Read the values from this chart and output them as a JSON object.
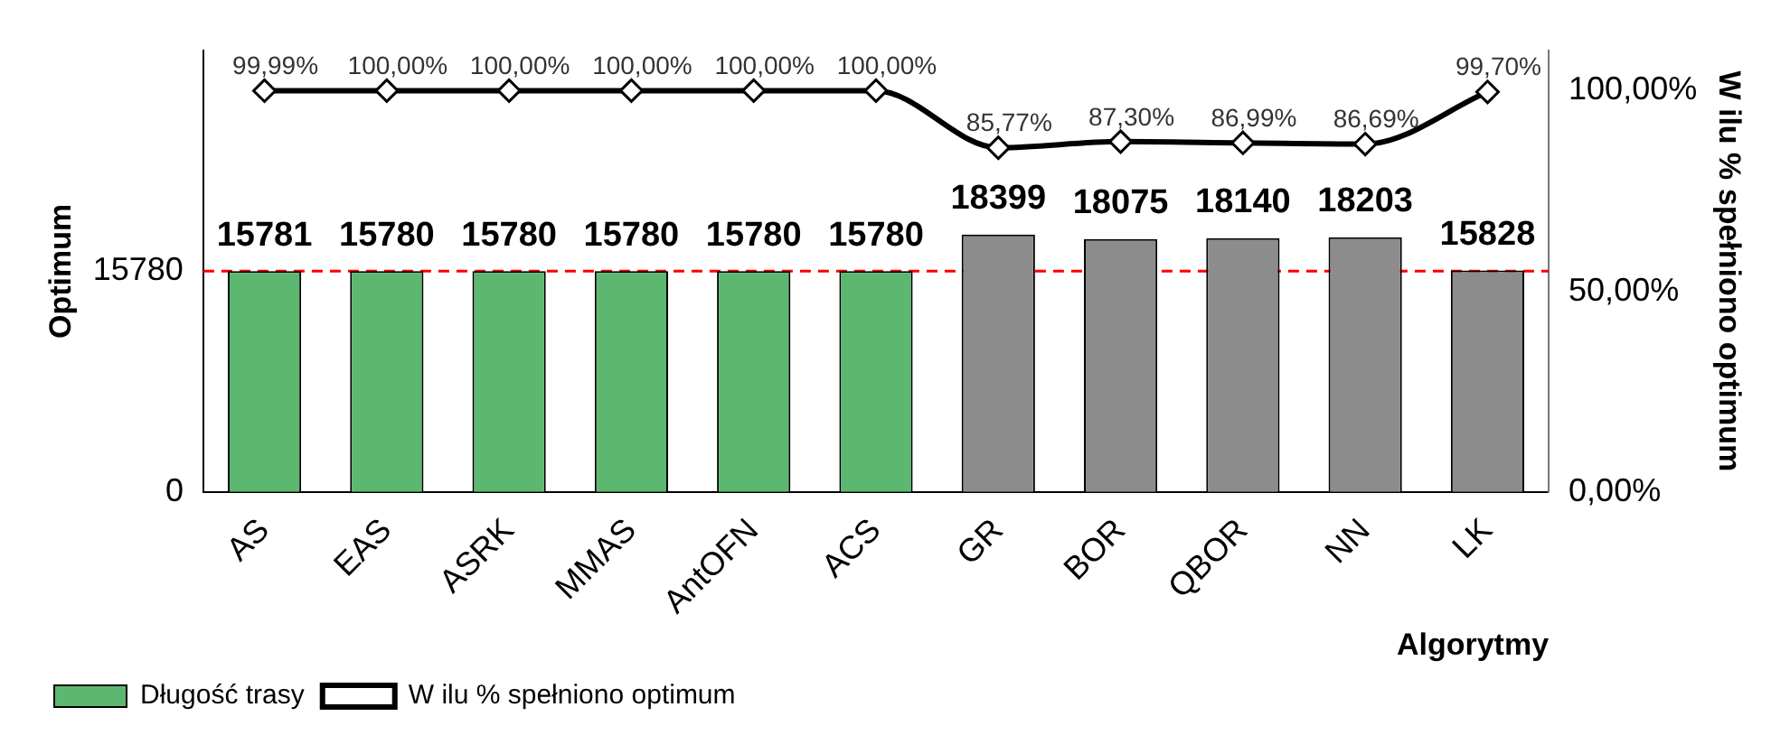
{
  "chart_data": {
    "type": "bar",
    "categories": [
      "AS",
      "EAS",
      "ASRK",
      "MMAS",
      "AntOFN",
      "ACS",
      "GR",
      "BOR",
      "QBOR",
      "NN",
      "LK"
    ],
    "series": [
      {
        "name": "Długość trasy",
        "colors": [
          "#5cb870",
          "#5cb870",
          "#5cb870",
          "#5cb870",
          "#5cb870",
          "#5cb870",
          "#8c8c8c",
          "#8c8c8c",
          "#8c8c8c",
          "#8c8c8c",
          "#8c8c8c"
        ],
        "values": [
          15781,
          15780,
          15780,
          15780,
          15780,
          15780,
          18399,
          18075,
          18140,
          18203,
          15828
        ],
        "value_labels": [
          "15781",
          "15780",
          "15780",
          "15780",
          "15780",
          "15780",
          "18399",
          "18075",
          "18140",
          "18203",
          "15828"
        ]
      },
      {
        "name": "W ilu % spełniono optimum",
        "type": "line",
        "axis": "y2",
        "color": "#000000",
        "values": [
          99.99,
          100,
          100,
          100,
          100,
          100,
          85.77,
          87.3,
          86.99,
          86.69,
          99.7
        ],
        "value_labels": [
          "99,99%",
          "100,00%",
          "100,00%",
          "100,00%",
          "100,00%",
          "100,00%",
          "85,77%",
          "87,30%",
          "86,99%",
          "86,69%",
          "99,70%"
        ]
      }
    ],
    "xlabel": "Algorytmy",
    "ylabel": "Optimum",
    "y2label": "W ilu % spełniono optimum",
    "ylim": [
      0,
      31560
    ],
    "yticks": [
      0,
      15780
    ],
    "y2lim": [
      0,
      110
    ],
    "y2ticks": [
      {
        "value": 0,
        "label": "0,00%"
      },
      {
        "value": 50,
        "label": "50,00%"
      },
      {
        "value": 100,
        "label": "100,00%"
      }
    ],
    "ref_lines": [
      {
        "axis": "y",
        "value": 15780,
        "color": "#ff0000",
        "line_style": "dashed"
      }
    ],
    "marker": "diamond",
    "grid": false,
    "legend": "bottom left"
  }
}
